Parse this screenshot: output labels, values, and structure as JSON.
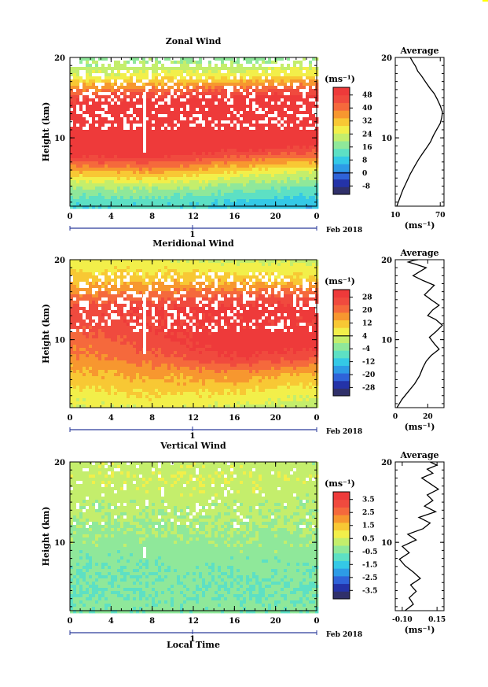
{
  "panels": [
    {
      "key": "zonal",
      "title": "Zonal Wind",
      "x_ticks": [
        "0",
        "4",
        "8",
        "12",
        "16",
        "20",
        "0"
      ],
      "y_ticks": [
        "20",
        "10"
      ],
      "ylabel": "Height (km)",
      "date_marker": "1",
      "date_label": "Feb 2018",
      "colorbar": {
        "unit": "(ms⁻¹)",
        "ticks": [
          "48",
          "40",
          "32",
          "24",
          "16",
          "8",
          "0",
          "-8"
        ],
        "zero_tick": "0"
      },
      "avg": {
        "title": "Average",
        "y_ticks": [
          "20",
          "10"
        ],
        "x_ticks": [
          "10",
          "70"
        ],
        "xlabel": "(ms⁻¹)"
      }
    },
    {
      "key": "meridional",
      "title": "Meridional Wind",
      "x_ticks": [
        "0",
        "4",
        "8",
        "12",
        "16",
        "20",
        "0"
      ],
      "y_ticks": [
        "20",
        "10"
      ],
      "ylabel": "Height (km)",
      "date_marker": "1",
      "date_label": "Feb 2018",
      "colorbar": {
        "unit": "(ms⁻¹)",
        "ticks": [
          "28",
          "20",
          "12",
          "4",
          "-4",
          "-12",
          "-20",
          "-28"
        ],
        "zero_tick": "4"
      },
      "avg": {
        "title": "Average",
        "y_ticks": [
          "20",
          "10"
        ],
        "x_ticks": [
          "0",
          "20"
        ],
        "xlabel": "(ms⁻¹)"
      }
    },
    {
      "key": "vertical",
      "title": "Vertical Wind",
      "x_ticks": [
        "0",
        "4",
        "8",
        "12",
        "16",
        "20",
        "0"
      ],
      "y_ticks": [
        "20",
        "10"
      ],
      "ylabel": "Height (km)",
      "date_marker": "1",
      "date_label": "Feb 2018",
      "xlabel": "Local Time",
      "colorbar": {
        "unit": "(ms⁻¹)",
        "ticks": [
          "3.5",
          "2.5",
          "1.5",
          "0.5",
          "-0.5",
          "-1.5",
          "-2.5",
          "-3.5"
        ],
        "zero_tick": ""
      },
      "avg": {
        "title": "Average",
        "y_ticks": [
          "20",
          "10"
        ],
        "x_ticks": [
          "-0.10",
          "0.15"
        ],
        "xlabel": "(ms⁻¹)"
      }
    }
  ],
  "colors": {
    "palette": [
      "#30306a",
      "#2433a8",
      "#2f63d9",
      "#2d9be6",
      "#34c9e6",
      "#5de0c4",
      "#8fe89a",
      "#c4ee6c",
      "#f2ef4a",
      "#f8c834",
      "#f7972f",
      "#f5693c",
      "#f04a3e",
      "#ee3a3a"
    ],
    "gap": "#ffffff",
    "marker_line": "#2a3a9a"
  },
  "chart_data": [
    {
      "type": "heatmap",
      "title": "Zonal Wind",
      "xlabel": "",
      "ylabel": "Height (km)",
      "xlim": [
        0,
        24
      ],
      "ylim": [
        1.5,
        20
      ],
      "colorbar_range": [
        -8,
        52
      ],
      "profiles_by_hour": [
        {
          "hour": 0,
          "height": [
            2,
            4,
            6,
            8,
            10,
            12,
            14,
            16,
            18,
            20
          ],
          "value": [
            14,
            22,
            34,
            48,
            58,
            62,
            52,
            40,
            26,
            20
          ]
        },
        {
          "hour": 8,
          "height": [
            2,
            4,
            6,
            8,
            10,
            12,
            14,
            16,
            18,
            20
          ],
          "value": [
            15,
            23,
            36,
            50,
            60,
            66,
            56,
            42,
            28,
            21
          ]
        },
        {
          "hour": 16,
          "height": [
            2,
            4,
            6,
            8,
            10,
            12,
            14,
            16,
            18,
            20
          ],
          "value": [
            12,
            20,
            30,
            44,
            56,
            64,
            56,
            44,
            28,
            20
          ]
        },
        {
          "hour": 24,
          "height": [
            2,
            4,
            6,
            8,
            10,
            12,
            14,
            16,
            18,
            20
          ],
          "value": [
            10,
            16,
            26,
            40,
            54,
            62,
            56,
            46,
            30,
            22
          ]
        }
      ]
    },
    {
      "type": "heatmap",
      "title": "Meridional Wind",
      "xlabel": "",
      "ylabel": "Height (km)",
      "xlim": [
        0,
        24
      ],
      "ylim": [
        1.5,
        20
      ],
      "colorbar_range": [
        -28,
        32
      ],
      "profiles_by_hour": [
        {
          "hour": 0,
          "height": [
            2,
            4,
            6,
            8,
            10,
            12,
            14,
            16,
            18,
            20
          ],
          "value": [
            6,
            10,
            14,
            18,
            20,
            24,
            26,
            18,
            12,
            8
          ]
        },
        {
          "hour": 8,
          "height": [
            2,
            4,
            6,
            8,
            10,
            12,
            14,
            16,
            18,
            20
          ],
          "value": [
            8,
            12,
            16,
            22,
            26,
            28,
            28,
            20,
            12,
            8
          ]
        },
        {
          "hour": 16,
          "height": [
            2,
            4,
            6,
            8,
            10,
            12,
            14,
            16,
            18,
            20
          ],
          "value": [
            6,
            12,
            18,
            28,
            32,
            28,
            30,
            22,
            12,
            6
          ]
        },
        {
          "hour": 24,
          "height": [
            2,
            4,
            6,
            8,
            10,
            12,
            14,
            16,
            18,
            20
          ],
          "value": [
            4,
            8,
            14,
            24,
            32,
            28,
            30,
            22,
            10,
            6
          ]
        }
      ]
    },
    {
      "type": "heatmap",
      "title": "Vertical Wind",
      "xlabel": "Local Time",
      "ylabel": "Height (km)",
      "xlim": [
        0,
        24
      ],
      "ylim": [
        1.5,
        20
      ],
      "colorbar_range": [
        -3.5,
        3.5
      ],
      "profiles_by_hour": [
        {
          "hour": 0,
          "height": [
            2,
            4,
            6,
            8,
            10,
            12,
            14,
            16,
            18,
            20
          ],
          "value": [
            -0.4,
            -0.5,
            -0.5,
            -0.4,
            -0.2,
            -0.1,
            0.1,
            0.2,
            0.3,
            0.3
          ]
        },
        {
          "hour": 12,
          "height": [
            2,
            4,
            6,
            8,
            10,
            12,
            14,
            16,
            18,
            20
          ],
          "value": [
            -0.3,
            -0.4,
            -0.4,
            -0.3,
            -0.2,
            0.0,
            0.1,
            0.3,
            0.4,
            0.3
          ]
        },
        {
          "hour": 24,
          "height": [
            2,
            4,
            6,
            8,
            10,
            12,
            14,
            16,
            18,
            20
          ],
          "value": [
            -0.4,
            -0.5,
            -0.4,
            -0.3,
            -0.1,
            0.0,
            0.1,
            0.2,
            0.3,
            0.2
          ]
        }
      ]
    },
    {
      "type": "line",
      "title": "Average",
      "xlabel": "(ms⁻¹)",
      "ylabel": "",
      "xlim": [
        10,
        75
      ],
      "ylim": [
        1.5,
        20
      ],
      "series": [
        {
          "x": [
            12,
            16,
            20,
            25,
            30,
            36,
            41,
            46,
            52,
            57,
            61,
            65,
            70,
            72,
            73,
            70,
            66,
            62,
            56,
            50,
            45,
            40,
            37,
            33,
            30
          ],
          "y": [
            1.5,
            2.5,
            3.5,
            4.5,
            5.5,
            6.5,
            7.3,
            8.0,
            8.8,
            9.5,
            10.3,
            11.0,
            11.8,
            12.5,
            13.2,
            14.0,
            14.8,
            15.5,
            16.2,
            17.0,
            17.7,
            18.3,
            18.9,
            19.5,
            20.0
          ]
        }
      ]
    },
    {
      "type": "line",
      "title": "Average",
      "xlabel": "(ms⁻¹)",
      "ylabel": "",
      "xlim": [
        0,
        30
      ],
      "ylim": [
        1.5,
        20
      ],
      "series": [
        {
          "x": [
            1,
            4,
            8,
            12,
            15,
            17,
            19,
            22,
            27,
            24,
            21,
            25,
            29,
            25,
            20,
            23,
            27,
            22,
            18,
            21,
            24,
            17,
            11,
            15,
            19,
            13,
            8,
            11,
            14
          ],
          "y": [
            1.5,
            2.5,
            3.5,
            4.5,
            5.5,
            6.5,
            7.3,
            8.0,
            8.8,
            9.5,
            10.3,
            11.0,
            11.8,
            12.5,
            13.0,
            13.7,
            14.3,
            15.0,
            15.6,
            16.2,
            16.8,
            17.4,
            18.0,
            18.5,
            19.0,
            19.4,
            19.7,
            19.9,
            20.0
          ]
        }
      ]
    },
    {
      "type": "line",
      "title": "Average",
      "xlabel": "(ms⁻¹)",
      "ylabel": "",
      "xlim": [
        -0.15,
        0.2
      ],
      "ylim": [
        1.5,
        20
      ],
      "series": [
        {
          "x": [
            -0.08,
            -0.02,
            -0.05,
            0.0,
            -0.04,
            0.03,
            -0.02,
            -0.08,
            -0.12,
            -0.05,
            -0.1,
            0.0,
            -0.06,
            0.05,
            0.1,
            0.02,
            0.14,
            0.06,
            0.12,
            0.08,
            0.16,
            0.1,
            0.04,
            0.12,
            0.08,
            0.15,
            0.1
          ],
          "y": [
            1.5,
            2.3,
            3.1,
            3.9,
            4.7,
            5.5,
            6.3,
            7.1,
            7.9,
            8.7,
            9.5,
            10.3,
            11.0,
            11.7,
            12.4,
            13.1,
            13.8,
            14.5,
            15.2,
            15.9,
            16.6,
            17.3,
            18.0,
            18.6,
            19.1,
            19.6,
            20.0
          ]
        }
      ]
    }
  ]
}
